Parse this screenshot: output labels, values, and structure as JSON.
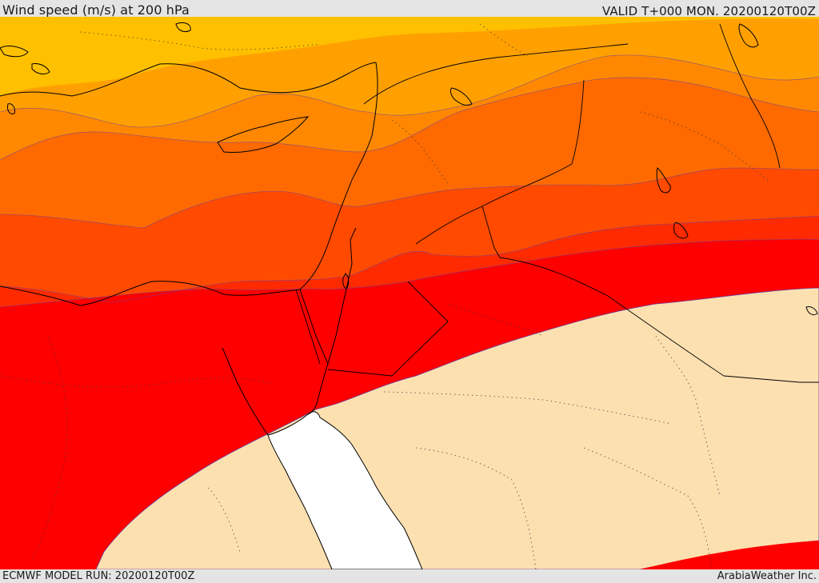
{
  "header": {
    "title": "Wind speed (m/s) at 200 hPa",
    "valid": "VALID T+000 MON. 20200120T00Z"
  },
  "footer": {
    "model_run": "ECMWF MODEL RUN: 20200120T00Z",
    "brand": "ArabiaWeather Inc."
  },
  "map": {
    "field": "wind speed",
    "level": "200 hPa",
    "colors": {
      "band_1": "#ffc000",
      "band_2": "#ffa000",
      "band_3": "#ff8800",
      "band_4": "#ff6a00",
      "band_5": "#ff4a00",
      "band_6": "#ff2a00",
      "band_7": "#ff0000",
      "low_wind": "#fde0b0",
      "sea_mask": "#ffffff",
      "coastline": "#000000",
      "contour_line": "#6a3fa0"
    }
  }
}
